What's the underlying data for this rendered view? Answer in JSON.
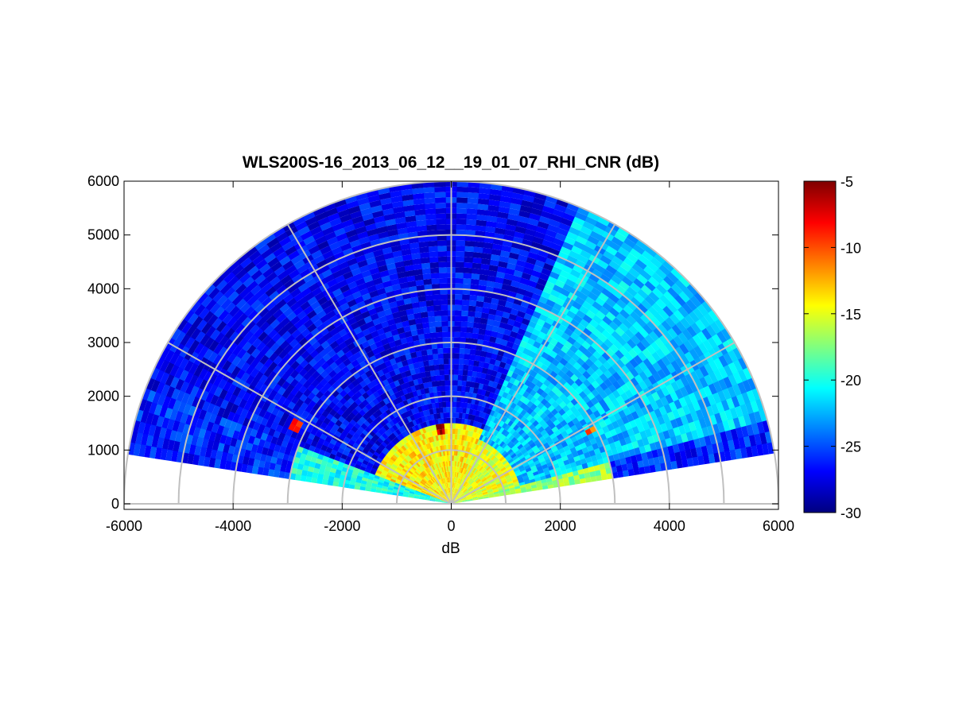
{
  "chart_data": {
    "type": "heatmap",
    "subtype": "polar-rhi-scan",
    "title": "WLS200S-16_2013_06_12__19_01_07_RHI_CNR (dB)",
    "xlabel": "dB",
    "ylabel": "",
    "xlim": [
      -6000,
      6000
    ],
    "ylim": [
      0,
      6000
    ],
    "x_ticks": [
      -6000,
      -4000,
      -2000,
      0,
      2000,
      4000,
      6000
    ],
    "y_ticks": [
      0,
      1000,
      2000,
      3000,
      4000,
      5000,
      6000
    ],
    "range_max": 6000,
    "range_rings": [
      1000,
      2000,
      3000,
      4000,
      5000,
      6000
    ],
    "angle_spokes_deg": [
      0,
      30,
      60,
      90,
      120,
      150,
      180
    ],
    "scan_elevation_deg": [
      9,
      171
    ],
    "colorbar": {
      "colormap": "jet",
      "clim": [
        -30,
        -5
      ],
      "ticks": [
        -30,
        -25,
        -20,
        -15,
        -10,
        -5
      ]
    },
    "sectors": [
      {
        "elevation_deg": [
          9,
          16
        ],
        "range_m": [
          0,
          3000
        ],
        "cnr_db": -17
      },
      {
        "elevation_deg": [
          9,
          16
        ],
        "range_m": [
          3000,
          6000
        ],
        "cnr_db": -26
      },
      {
        "elevation_deg": [
          16,
          68
        ],
        "range_m": [
          0,
          1300
        ],
        "cnr_db": -15
      },
      {
        "elevation_deg": [
          16,
          68
        ],
        "range_m": [
          1300,
          6000
        ],
        "cnr_db": -22
      },
      {
        "elevation_deg": [
          68,
          160
        ],
        "range_m": [
          0,
          1500
        ],
        "cnr_db": -14
      },
      {
        "elevation_deg": [
          68,
          160
        ],
        "range_m": [
          1500,
          6000
        ],
        "cnr_db": -27
      },
      {
        "elevation_deg": [
          160,
          171
        ],
        "range_m": [
          0,
          3000
        ],
        "cnr_db": -20
      },
      {
        "elevation_deg": [
          160,
          171
        ],
        "range_m": [
          3000,
          6000
        ],
        "cnr_db": -26
      }
    ],
    "hotspots": [
      {
        "elevation_deg": [
          96,
          102
        ],
        "range_m": [
          1300,
          1480
        ],
        "cnr_db": -6
      },
      {
        "elevation_deg": [
          27,
          29
        ],
        "range_m": [
          2850,
          2980
        ],
        "cnr_db": -10
      },
      {
        "elevation_deg": [
          152,
          155
        ],
        "range_m": [
          3100,
          3280
        ],
        "cnr_db": -9
      }
    ]
  }
}
